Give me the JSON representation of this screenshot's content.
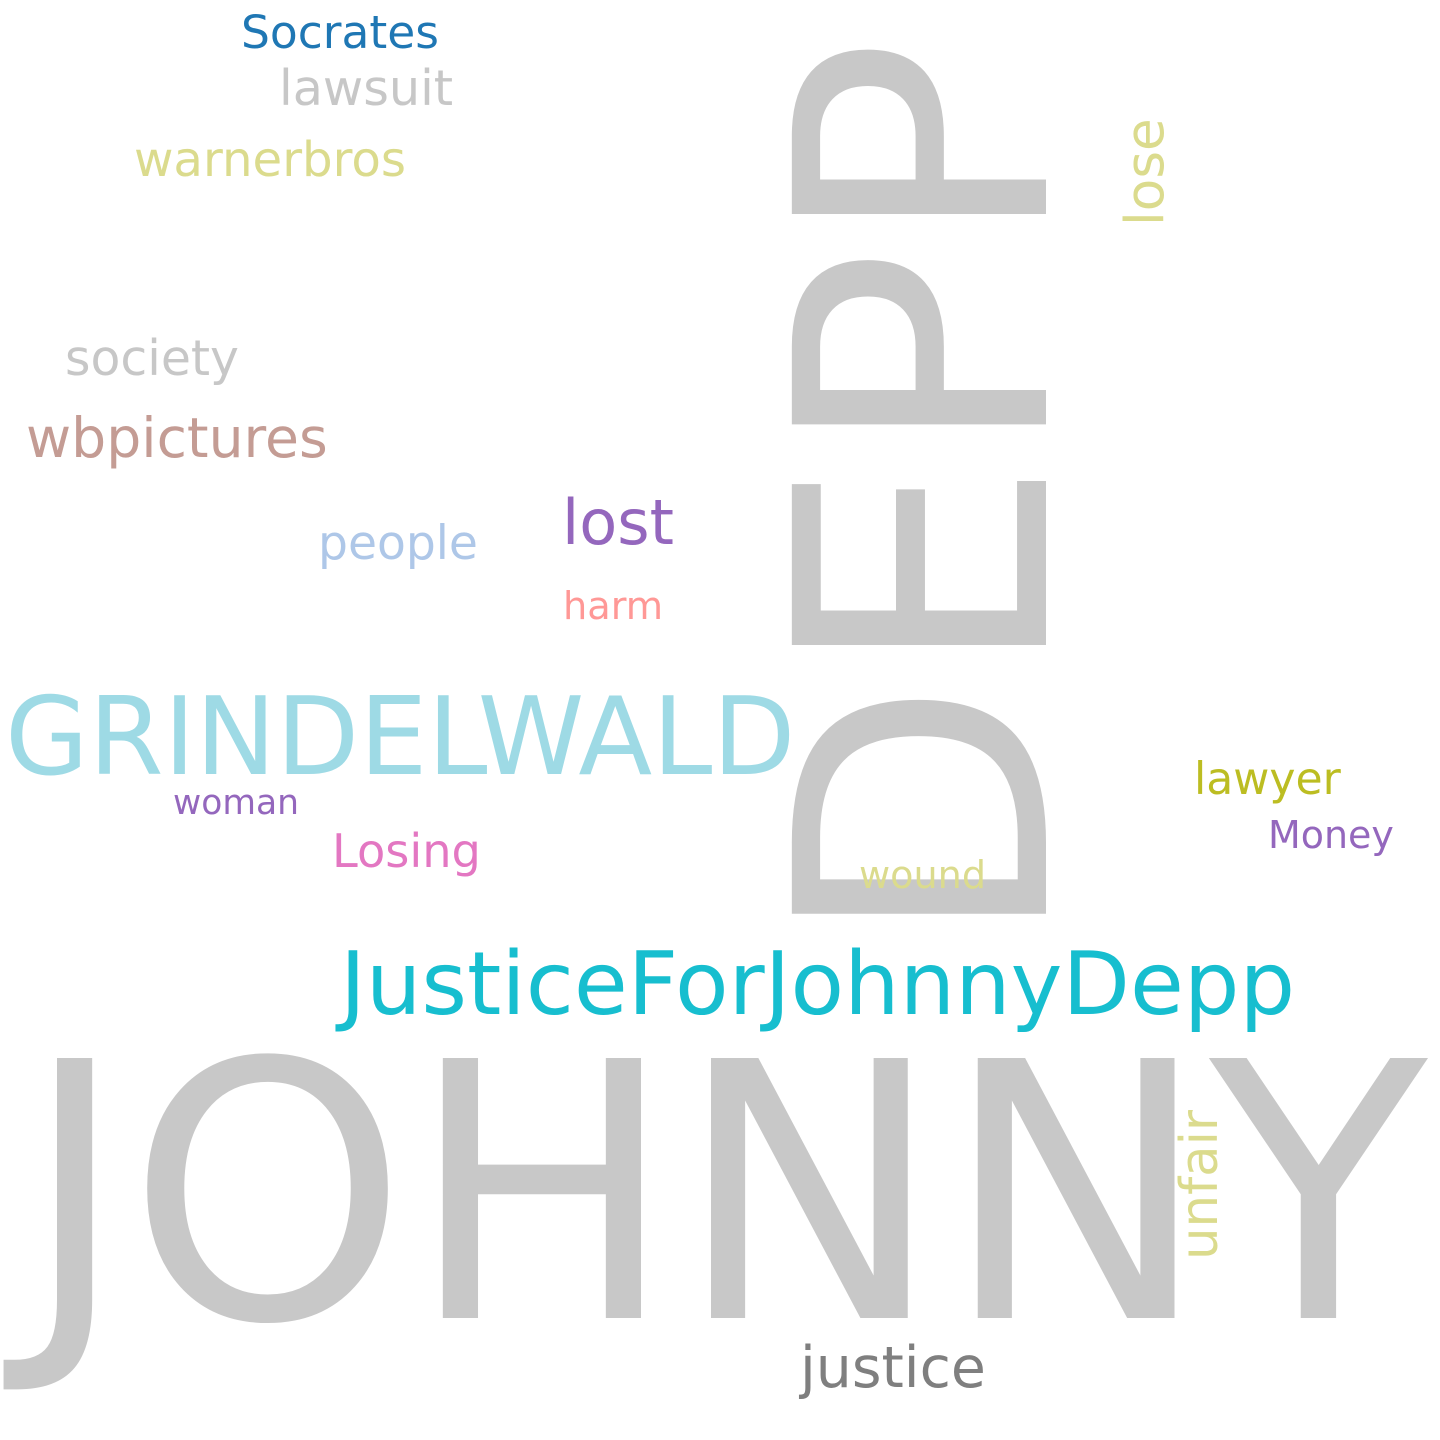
{
  "word_cloud": {
    "words": [
      {
        "key": "johnny",
        "text": "JOHNNY",
        "color": "#c8c8c8",
        "orientation": "horizontal"
      },
      {
        "key": "depp",
        "text": "DEPP",
        "color": "#c8c8c8",
        "orientation": "vertical"
      },
      {
        "key": "justice_for_johnny_depp",
        "text": "JusticeForJohnnyDepp",
        "color": "#17becf",
        "orientation": "horizontal"
      },
      {
        "key": "grindelwald",
        "text": "GRINDELWALD",
        "color": "#9edae5",
        "orientation": "horizontal"
      },
      {
        "key": "socrates",
        "text": "Socrates",
        "color": "#1f77b4",
        "orientation": "horizontal"
      },
      {
        "key": "lawsuit",
        "text": "lawsuit",
        "color": "#c7c7c7",
        "orientation": "horizontal"
      },
      {
        "key": "warnerbros",
        "text": "warnerbros",
        "color": "#dbdb8d",
        "orientation": "horizontal"
      },
      {
        "key": "lose",
        "text": "lose",
        "color": "#dbdb8d",
        "orientation": "vertical"
      },
      {
        "key": "society",
        "text": "society",
        "color": "#c7c7c7",
        "orientation": "horizontal"
      },
      {
        "key": "wbpictures",
        "text": "wbpictures",
        "color": "#c49c94",
        "orientation": "horizontal"
      },
      {
        "key": "people",
        "text": "people",
        "color": "#aec7e8",
        "orientation": "horizontal"
      },
      {
        "key": "lost",
        "text": "lost",
        "color": "#9467bd",
        "orientation": "horizontal"
      },
      {
        "key": "harm",
        "text": "harm",
        "color": "#ff9896",
        "orientation": "horizontal"
      },
      {
        "key": "woman",
        "text": "woman",
        "color": "#9467bd",
        "orientation": "horizontal"
      },
      {
        "key": "losing",
        "text": "Losing",
        "color": "#e377c2",
        "orientation": "horizontal"
      },
      {
        "key": "lawyer",
        "text": "lawyer",
        "color": "#bcbd22",
        "orientation": "horizontal"
      },
      {
        "key": "money",
        "text": "Money",
        "color": "#9467bd",
        "orientation": "horizontal"
      },
      {
        "key": "wound",
        "text": "wound",
        "color": "#dbdb8d",
        "orientation": "horizontal"
      },
      {
        "key": "unfair",
        "text": "unfair",
        "color": "#dbdb8d",
        "orientation": "vertical"
      },
      {
        "key": "justice",
        "text": "justice",
        "color": "#7f7f7f",
        "orientation": "horizontal"
      }
    ]
  }
}
